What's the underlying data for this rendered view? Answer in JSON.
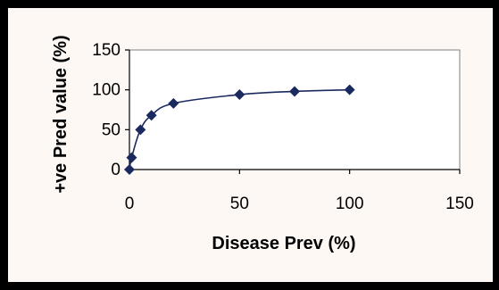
{
  "chart_data": {
    "type": "line",
    "title": "",
    "xlabel": "Disease Prev (%)",
    "ylabel": "+ve Pred value (%)",
    "xlim": [
      0,
      150
    ],
    "ylim": [
      0,
      150
    ],
    "xticks": [
      "0",
      "50",
      "100",
      "150"
    ],
    "yticks": [
      "0",
      "50",
      "100",
      "150"
    ],
    "grid": false,
    "legend": "none",
    "series": [
      {
        "x": [
          0,
          1,
          5,
          10,
          20,
          50,
          75,
          100
        ],
        "y": [
          0,
          15,
          50,
          68,
          83,
          94,
          98,
          100
        ]
      }
    ],
    "colors": {
      "series": "#1a2a5e",
      "frame": "#000000",
      "background": "#fdf8f4",
      "plot_area": "#ffffff"
    }
  }
}
